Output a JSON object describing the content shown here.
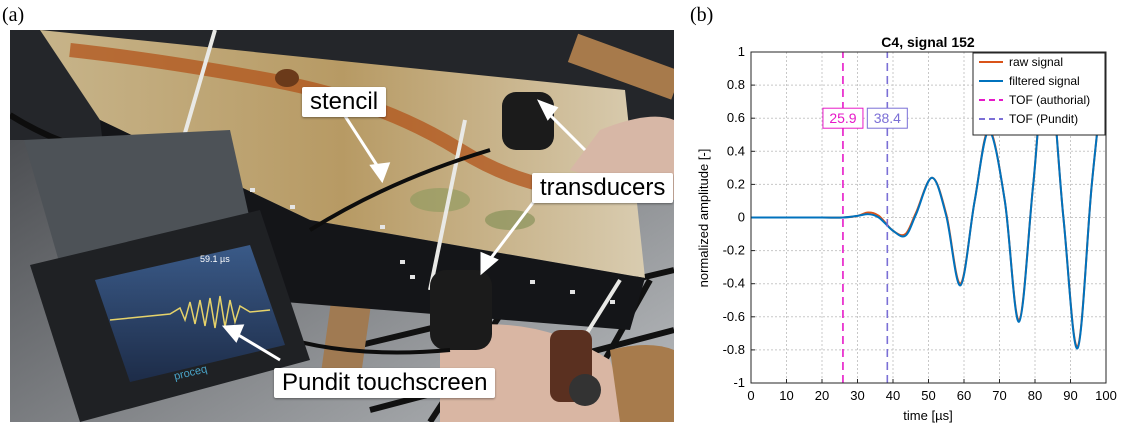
{
  "panel_a": {
    "label": "(a)",
    "callouts": {
      "stencil": "stencil",
      "transducers": "transducers",
      "touchscreen": "Pundit touchscreen"
    },
    "device_screen": {
      "time_readout": "59.1 µs",
      "brand": "proceq"
    }
  },
  "panel_b": {
    "label": "(b)"
  },
  "chart_data": {
    "type": "line",
    "title": "C4, signal 152",
    "xlabel": "time [µs]",
    "ylabel": "normalized amplitude [-]",
    "xlim": [
      0,
      100
    ],
    "ylim": [
      -1,
      1
    ],
    "xticks": [
      0,
      10,
      20,
      30,
      40,
      50,
      60,
      70,
      80,
      90,
      100
    ],
    "yticks": [
      -1,
      -0.8,
      -0.6,
      -0.4,
      -0.2,
      0,
      0.2,
      0.4,
      0.6,
      0.8,
      1
    ],
    "grid": true,
    "legend_position": "top-right",
    "series": [
      {
        "name": "raw signal",
        "color": "#d95319",
        "style": "solid",
        "x": [
          0,
          10,
          20,
          25.9,
          30,
          33,
          36,
          40,
          43.5,
          46.5,
          51,
          55,
          59,
          63,
          67,
          71.5,
          75.5,
          79.5,
          83.5,
          88,
          92,
          96,
          100
        ],
        "y": [
          0,
          0,
          0,
          0,
          0.01,
          0.03,
          0.01,
          -0.08,
          -0.1,
          0.03,
          0.24,
          0.02,
          -0.4,
          0.1,
          0.53,
          0.1,
          -0.62,
          0.2,
          1.0,
          0.0,
          -0.78,
          0.2,
          1.0
        ]
      },
      {
        "name": "filtered signal",
        "color": "#0072bd",
        "style": "solid",
        "x": [
          0,
          10,
          20,
          25.9,
          30,
          33,
          36,
          40,
          43.5,
          46.5,
          51,
          55,
          59,
          63,
          67,
          71.5,
          75.5,
          79.5,
          83.5,
          88,
          92,
          96,
          100
        ],
        "y": [
          0,
          0,
          0,
          0,
          0.01,
          0.02,
          0.0,
          -0.08,
          -0.11,
          0.02,
          0.24,
          0.01,
          -0.41,
          0.1,
          0.52,
          0.1,
          -0.63,
          0.2,
          1.0,
          0.0,
          -0.79,
          0.2,
          1.0
        ]
      },
      {
        "name": "TOF (authorial)",
        "color": "#e619c8",
        "style": "dashed",
        "x": [
          25.9,
          25.9
        ],
        "y": [
          -1,
          1
        ],
        "annotation": "25.9"
      },
      {
        "name": "TOF (Pundit)",
        "color": "#7b6fd6",
        "style": "dashed",
        "x": [
          38.4,
          38.4
        ],
        "y": [
          -1,
          1
        ],
        "annotation": "38.4"
      }
    ]
  }
}
